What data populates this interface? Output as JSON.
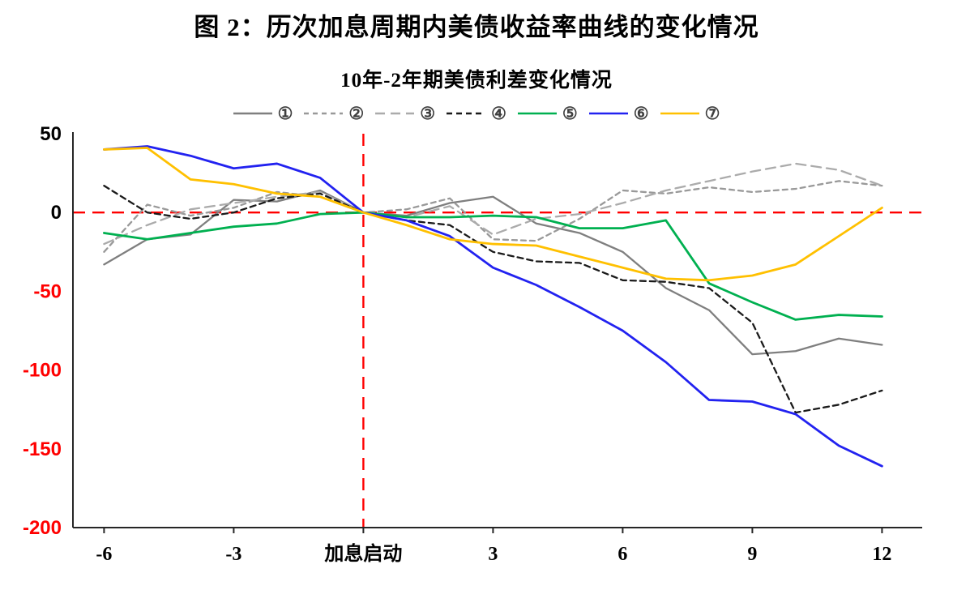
{
  "figure_title": "图 2：历次加息周期内美债收益率曲线的变化情况",
  "chart_data": {
    "type": "line",
    "title": "10年-2年期美债利差变化情况",
    "x": [
      -6,
      -5,
      -4,
      -3,
      -2,
      -1,
      0,
      1,
      2,
      3,
      4,
      5,
      6,
      7,
      8,
      9,
      10,
      11,
      12
    ],
    "x_axis": {
      "range": [
        -6.72,
        12.93
      ],
      "ticks": [
        {
          "value": -6,
          "label": "-6"
        },
        {
          "value": -3,
          "label": "-3"
        },
        {
          "value": 0,
          "label": "加息启动"
        },
        {
          "value": 3,
          "label": "3"
        },
        {
          "value": 6,
          "label": "6"
        },
        {
          "value": 9,
          "label": "9"
        },
        {
          "value": 12,
          "label": "12"
        }
      ]
    },
    "y_axis": {
      "range": [
        -200,
        50
      ],
      "ticks": [
        {
          "value": 50,
          "label": "50",
          "color": "#000000"
        },
        {
          "value": 0,
          "label": "0",
          "color": "#000000"
        },
        {
          "value": -50,
          "label": "-50",
          "color": "#ff0000"
        },
        {
          "value": -100,
          "label": "-100",
          "color": "#ff0000"
        },
        {
          "value": -150,
          "label": "-150",
          "color": "#ff0000"
        },
        {
          "value": -200,
          "label": "-200",
          "color": "#ff0000"
        }
      ]
    },
    "reference_lines": [
      {
        "name": "zero-line",
        "orientation": "horizontal",
        "value": 0,
        "color": "#ff0000",
        "style": "dashed"
      },
      {
        "name": "hike-start-line",
        "orientation": "vertical",
        "value": 0,
        "color": "#ff0000",
        "style": "dashed"
      }
    ],
    "series": [
      {
        "name": "①",
        "color": "#7f7f7f",
        "style": "solid",
        "dash": null,
        "values": [
          -33,
          -17,
          -14,
          8,
          7,
          14,
          0,
          -2,
          6,
          10,
          -7,
          -13,
          -25,
          -48,
          -62,
          -90,
          -88,
          -80,
          -84
        ]
      },
      {
        "name": "②",
        "color": "#999999",
        "style": "dashed",
        "dash": "6 5",
        "values": [
          -25,
          5,
          -2,
          3,
          13,
          10,
          0,
          2,
          9,
          -17,
          -18,
          -4,
          14,
          12,
          16,
          13,
          15,
          20,
          17
        ]
      },
      {
        "name": "③",
        "color": "#ababab",
        "style": "dashed",
        "dash": "12 7",
        "values": [
          -20,
          -8,
          2,
          6,
          10,
          13,
          0,
          -3,
          4,
          -14,
          -4,
          -1,
          6,
          14,
          20,
          26,
          31,
          27,
          17
        ]
      },
      {
        "name": "④",
        "color": "#1a1a1a",
        "style": "dashed",
        "dash": "7 5",
        "values": [
          17,
          0,
          -4,
          0,
          9,
          12,
          0,
          -5,
          -8,
          -25,
          -31,
          -32,
          -43,
          -44,
          -48,
          -70,
          -127,
          -122,
          -113
        ]
      },
      {
        "name": "⑤",
        "color": "#00b050",
        "style": "solid",
        "dash": null,
        "values": [
          -13,
          -17,
          -13,
          -9,
          -7,
          -1,
          0,
          -3,
          -3,
          -2,
          -3,
          -10,
          -10,
          -5,
          -45,
          -57,
          -68,
          -65,
          -66
        ]
      },
      {
        "name": "⑥",
        "color": "#2222f0",
        "style": "solid",
        "dash": null,
        "values": [
          40,
          42,
          36,
          28,
          31,
          22,
          0,
          -5,
          -15,
          -35,
          -46,
          -60,
          -75,
          -95,
          -119,
          -120,
          -128,
          -148,
          -161
        ]
      },
      {
        "name": "⑦",
        "color": "#ffc000",
        "style": "solid",
        "dash": null,
        "values": [
          40,
          41,
          21,
          18,
          12,
          10,
          0,
          -8,
          -17,
          -20,
          -21,
          -28,
          -35,
          -42,
          -43,
          -40,
          -33,
          -15,
          3
        ]
      }
    ],
    "axis_color": "#262626"
  }
}
